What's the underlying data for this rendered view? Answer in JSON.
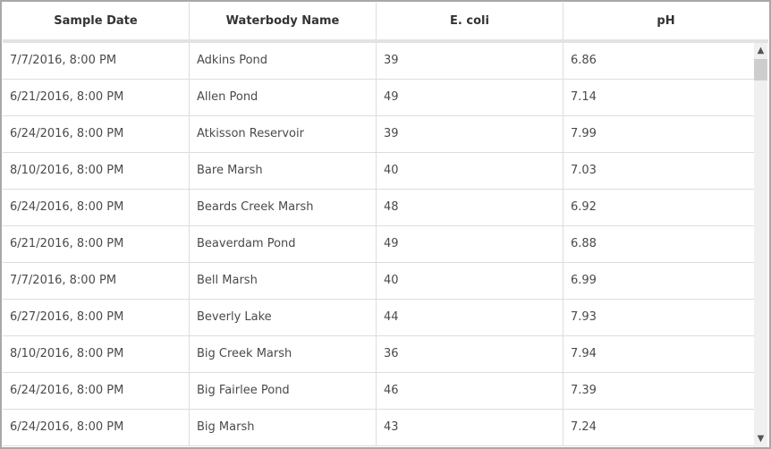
{
  "table": {
    "columns": [
      "Sample Date",
      "Waterbody Name",
      "E. coli",
      "pH"
    ],
    "rows": [
      [
        "7/7/2016, 8:00 PM",
        "Adkins Pond",
        "39",
        "6.86"
      ],
      [
        "6/21/2016, 8:00 PM",
        "Allen Pond",
        "49",
        "7.14"
      ],
      [
        "6/24/2016, 8:00 PM",
        "Atkisson Reservoir",
        "39",
        "7.99"
      ],
      [
        "8/10/2016, 8:00 PM",
        "Bare Marsh",
        "40",
        "7.03"
      ],
      [
        "6/24/2016, 8:00 PM",
        "Beards Creek Marsh",
        "48",
        "6.92"
      ],
      [
        "6/21/2016, 8:00 PM",
        "Beaverdam Pond",
        "49",
        "6.88"
      ],
      [
        "7/7/2016, 8:00 PM",
        "Bell Marsh",
        "40",
        "6.99"
      ],
      [
        "6/27/2016, 8:00 PM",
        "Beverly Lake",
        "44",
        "7.93"
      ],
      [
        "8/10/2016, 8:00 PM",
        "Big Creek Marsh",
        "36",
        "7.94"
      ],
      [
        "6/24/2016, 8:00 PM",
        "Big Fairlee Pond",
        "46",
        "7.39"
      ],
      [
        "6/24/2016, 8:00 PM",
        "Big Marsh",
        "43",
        "7.24"
      ]
    ]
  },
  "scrollbar": {
    "position_fraction": 0.0,
    "up_icon": "chevron-up-icon",
    "down_icon": "chevron-down-icon"
  }
}
